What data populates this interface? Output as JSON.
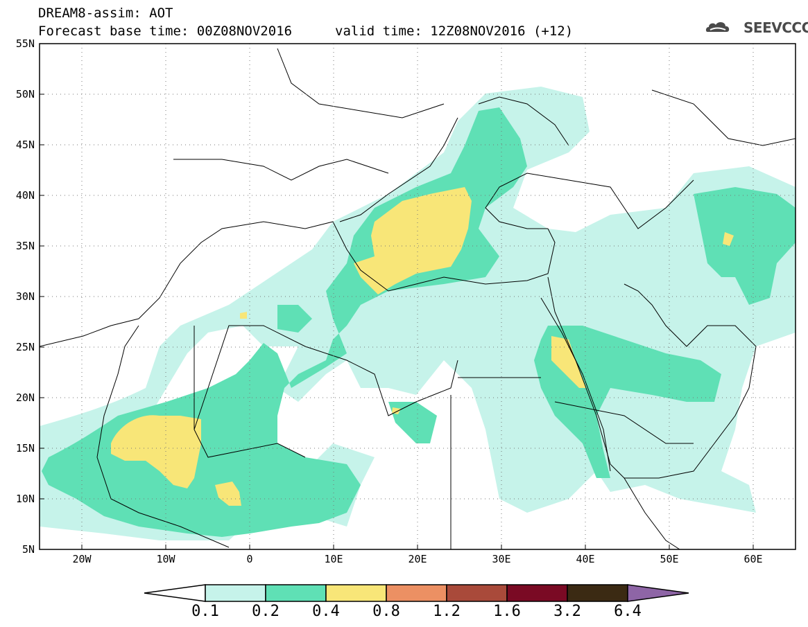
{
  "header": {
    "line1": "DREAM8-assim: AOT",
    "line2": "Forecast base time: 00Z08NOV2016",
    "valid": "valid time: 12Z08NOV2016 (+12)",
    "logo_text": "SEEVCCC"
  },
  "map": {
    "lat_labels": [
      "55N",
      "50N",
      "45N",
      "40N",
      "35N",
      "30N",
      "25N",
      "20N",
      "15N",
      "10N",
      "5N"
    ],
    "lon_labels": [
      "20W",
      "10W",
      "0",
      "10E",
      "20E",
      "30E",
      "40E",
      "50E",
      "60E"
    ]
  },
  "colorbar": {
    "labels": [
      "0.1",
      "0.2",
      "0.4",
      "0.8",
      "1.2",
      "1.6",
      "3.2",
      "6.4"
    ],
    "colors": [
      "#ffffff",
      "#c6f3ea",
      "#5fe0b5",
      "#f8e678",
      "#ec9063",
      "#a94a3a",
      "#7a0a24",
      "#3b2a13",
      "#8e65a6"
    ]
  }
}
